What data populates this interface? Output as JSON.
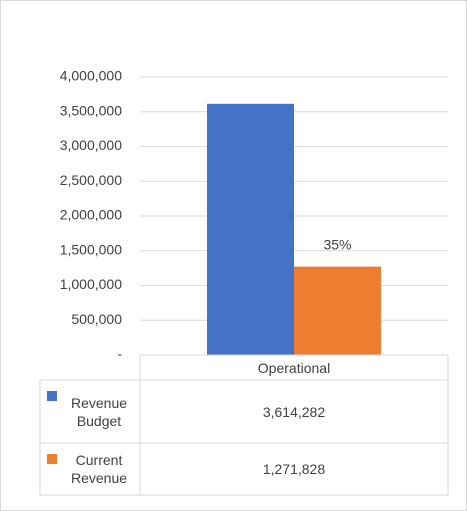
{
  "chart_data": {
    "type": "bar",
    "categories": [
      "Operational"
    ],
    "series": [
      {
        "name": "Revenue Budget",
        "color": "#4472c4",
        "values": [
          3614282
        ],
        "value_labels": [
          "3,614,282"
        ]
      },
      {
        "name": "Current Revenue",
        "color": "#ed7d31",
        "values": [
          1271828
        ],
        "value_labels": [
          "1,271,828"
        ]
      }
    ],
    "annotations": [
      {
        "text": "35%",
        "series": 1,
        "category": 0
      }
    ],
    "ylim": [
      0,
      4000000
    ],
    "yticks": [
      {
        "value": 0,
        "label": "-"
      },
      {
        "value": 500000,
        "label": "500,000"
      },
      {
        "value": 1000000,
        "label": "1,000,000"
      },
      {
        "value": 1500000,
        "label": "1,500,000"
      },
      {
        "value": 2000000,
        "label": "2,000,000"
      },
      {
        "value": 2500000,
        "label": "2,500,000"
      },
      {
        "value": 3000000,
        "label": "3,000,000"
      },
      {
        "value": 3500000,
        "label": "3,500,000"
      },
      {
        "value": 4000000,
        "label": "4,000,000"
      }
    ],
    "grid": true,
    "data_table": true
  }
}
